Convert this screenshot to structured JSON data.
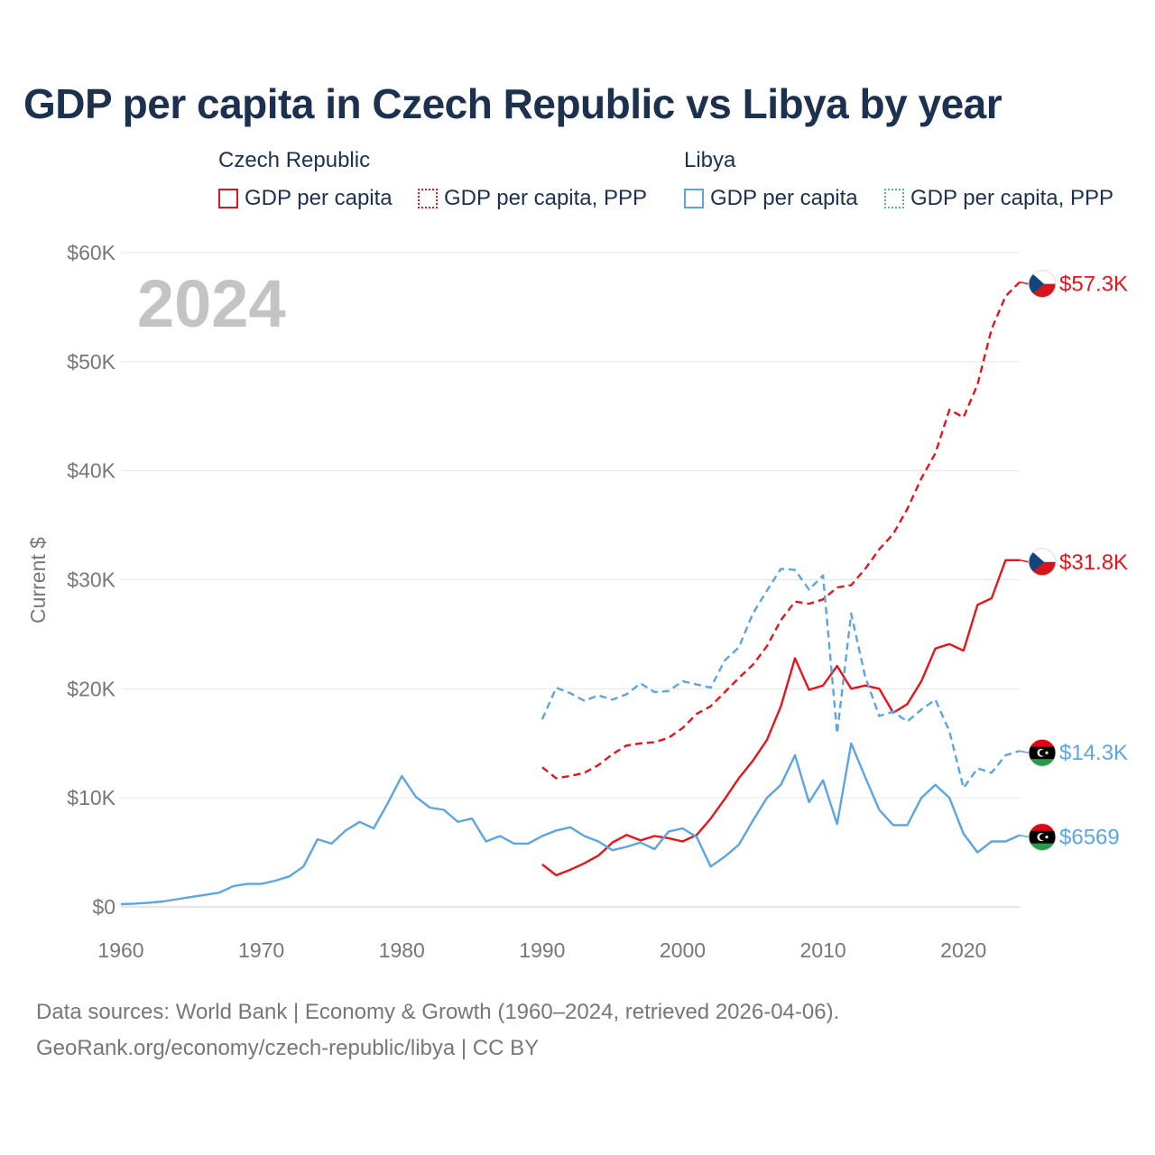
{
  "title": "GDP per capita in Czech Republic vs Libya by year",
  "legend": {
    "groups": [
      {
        "name": "Czech Republic",
        "items": [
          "GDP per capita",
          "GDP per capita, PPP"
        ]
      },
      {
        "name": "Libya",
        "items": [
          "GDP per capita",
          "GDP per capita, PPP"
        ]
      }
    ]
  },
  "footer": {
    "line1": "Data sources: World Bank | Economy & Growth (1960–2024, retrieved 2026-04-06).",
    "line2": "GeoRank.org/economy/czech-republic/libya | CC BY"
  },
  "colors": {
    "czech": "#e8141b",
    "libya": "#5ca5e4",
    "grid": "#e6e6e6",
    "text": "#1c3150",
    "muted": "#777777",
    "year": "#c4c4c4"
  },
  "chart_data": {
    "type": "line",
    "title": "GDP per capita in Czech Republic vs Libya by year",
    "xlabel": "",
    "ylabel": "Current $",
    "xlim": [
      1960,
      2024
    ],
    "ylim": [
      0,
      60000
    ],
    "x_ticks": [
      1960,
      1970,
      1980,
      1990,
      2000,
      2010,
      2020
    ],
    "y_ticks": [
      0,
      10000,
      20000,
      30000,
      40000,
      50000,
      60000
    ],
    "y_tick_labels": [
      "$0",
      "$10K",
      "$20K",
      "$30K",
      "$40K",
      "$50K",
      "$60K"
    ],
    "year_label": "2024",
    "grid": true,
    "series": [
      {
        "name": "Czech Republic GDP per capita",
        "country": "czech",
        "style": "solid",
        "end_label": "$31.8K",
        "x": [
          1990,
          1991,
          1992,
          1993,
          1994,
          1995,
          1996,
          1997,
          1998,
          1999,
          2000,
          2001,
          2002,
          2003,
          2004,
          2005,
          2006,
          2007,
          2008,
          2009,
          2010,
          2011,
          2012,
          2013,
          2014,
          2015,
          2016,
          2017,
          2018,
          2019,
          2020,
          2021,
          2022,
          2023,
          2024
        ],
        "values": [
          3900,
          2900,
          3400,
          4000,
          4700,
          5900,
          6600,
          6100,
          6500,
          6300,
          6000,
          6600,
          8100,
          9900,
          11800,
          13400,
          15300,
          18400,
          22800,
          19900,
          20300,
          22100,
          20000,
          20300,
          20000,
          17800,
          18600,
          20700,
          23700,
          24100,
          23500,
          27700,
          28300,
          31800,
          31800
        ]
      },
      {
        "name": "Czech Republic GDP per capita, PPP",
        "country": "czech",
        "style": "dashed",
        "end_label": "$57.3K",
        "x": [
          1990,
          1991,
          1992,
          1993,
          1994,
          1995,
          1996,
          1997,
          1998,
          1999,
          2000,
          2001,
          2002,
          2003,
          2004,
          2005,
          2006,
          2007,
          2008,
          2009,
          2010,
          2011,
          2012,
          2013,
          2014,
          2015,
          2016,
          2017,
          2018,
          2019,
          2020,
          2021,
          2022,
          2023,
          2024
        ],
        "values": [
          12800,
          11800,
          12000,
          12300,
          13000,
          14000,
          14800,
          15000,
          15100,
          15500,
          16400,
          17700,
          18400,
          19700,
          21000,
          22200,
          23900,
          26300,
          28000,
          27800,
          28200,
          29300,
          29500,
          31000,
          32800,
          34200,
          36500,
          39300,
          41600,
          45600,
          44900,
          47900,
          53000,
          56000,
          57300
        ]
      },
      {
        "name": "Libya GDP per capita",
        "country": "libya",
        "style": "solid",
        "end_label": "$6569",
        "x": [
          1960,
          1961,
          1962,
          1963,
          1964,
          1965,
          1966,
          1967,
          1968,
          1969,
          1970,
          1971,
          1972,
          1973,
          1974,
          1975,
          1976,
          1977,
          1978,
          1979,
          1980,
          1981,
          1982,
          1983,
          1984,
          1985,
          1986,
          1987,
          1988,
          1989,
          1990,
          1991,
          1992,
          1993,
          1994,
          1995,
          1996,
          1997,
          1998,
          1999,
          2000,
          2001,
          2002,
          2003,
          2004,
          2005,
          2006,
          2007,
          2008,
          2009,
          2010,
          2011,
          2012,
          2013,
          2014,
          2015,
          2016,
          2017,
          2018,
          2019,
          2020,
          2021,
          2022,
          2023,
          2024
        ],
        "values": [
          250,
          300,
          380,
          500,
          700,
          900,
          1100,
          1300,
          1900,
          2100,
          2100,
          2400,
          2800,
          3700,
          6200,
          5800,
          7000,
          7800,
          7200,
          9500,
          12000,
          10100,
          9100,
          8900,
          7800,
          8100,
          6000,
          6500,
          5800,
          5800,
          6500,
          7000,
          7300,
          6500,
          6000,
          5200,
          5500,
          5900,
          5300,
          6900,
          7200,
          6400,
          3700,
          4600,
          5700,
          7900,
          10000,
          11200,
          13900,
          9600,
          11600,
          7600,
          15000,
          11900,
          8900,
          7500,
          7500,
          10000,
          11200,
          10000,
          6700,
          5000,
          6000,
          6000,
          6569
        ]
      },
      {
        "name": "Libya GDP per capita, PPP",
        "country": "libya",
        "style": "dashed",
        "end_label": "$14.3K",
        "x": [
          1990,
          1991,
          1992,
          1993,
          1994,
          1995,
          1996,
          1997,
          1998,
          1999,
          2000,
          2001,
          2002,
          2003,
          2004,
          2005,
          2006,
          2007,
          2008,
          2009,
          2010,
          2011,
          2012,
          2013,
          2014,
          2015,
          2016,
          2017,
          2018,
          2019,
          2020,
          2021,
          2022,
          2023,
          2024
        ],
        "values": [
          17200,
          20100,
          19600,
          18900,
          19400,
          19000,
          19500,
          20500,
          19700,
          19800,
          20700,
          20400,
          20100,
          22600,
          23800,
          26900,
          29000,
          31000,
          30900,
          29100,
          30400,
          15900,
          26900,
          21100,
          17500,
          17900,
          17000,
          18100,
          19000,
          16100,
          10900,
          12700,
          12300,
          13900,
          14300
        ]
      }
    ]
  }
}
